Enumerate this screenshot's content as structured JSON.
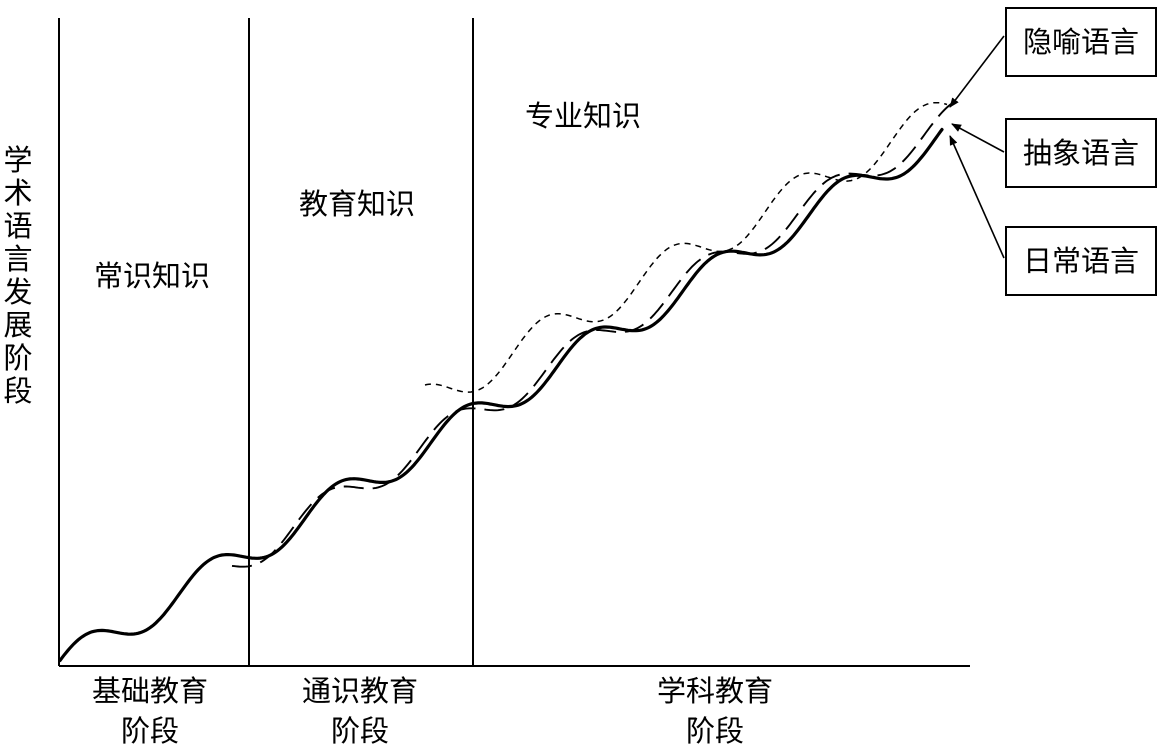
{
  "y_axis_title": [
    "学",
    "术",
    "语",
    "言",
    "发",
    "展",
    "阶",
    "段"
  ],
  "knowledge_zones": [
    {
      "label": "常识知识"
    },
    {
      "label": "教育知识"
    },
    {
      "label": "专业知识"
    }
  ],
  "stages": [
    {
      "line1": "基础教育",
      "line2": "阶段"
    },
    {
      "line1": "通识教育",
      "line2": "阶段"
    },
    {
      "line1": "学科教育",
      "line2": "阶段"
    }
  ],
  "legend": [
    {
      "label": "隐喻语言",
      "line_style": "short-dash"
    },
    {
      "label": "抽象语言",
      "line_style": "long-dash"
    },
    {
      "label": "日常语言",
      "line_style": "solid"
    }
  ],
  "colors": {
    "ink": "#000000",
    "background": "#ffffff"
  }
}
